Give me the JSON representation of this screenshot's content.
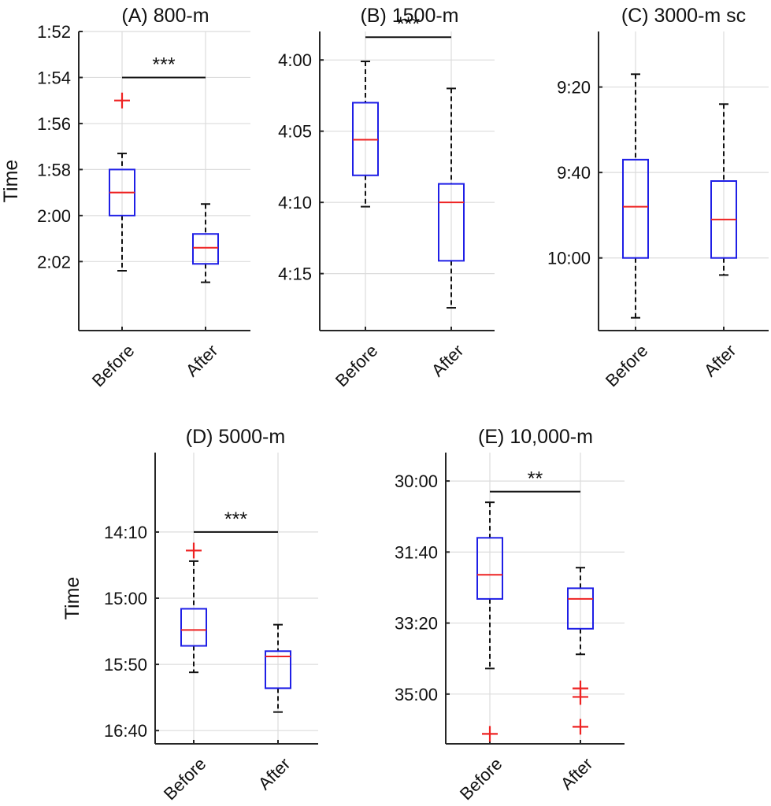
{
  "chart_data": [
    {
      "type": "boxplot",
      "title": "(A) 800-m",
      "ylabel": "Time",
      "y_unit": "seconds",
      "ylim": [
        112,
        125
      ],
      "y_reversed": true,
      "yticks": [
        112,
        114,
        116,
        118,
        120,
        122
      ],
      "ytick_labels": [
        "1:52",
        "1:54",
        "1:56",
        "1:58",
        "2:00",
        "2:02"
      ],
      "categories": [
        "Before",
        "After"
      ],
      "boxes": [
        {
          "whisker_low": 117.3,
          "q1": 118.0,
          "median": 119.0,
          "q3": 120.0,
          "whisker_high": 122.4,
          "outliers": [
            115.0
          ]
        },
        {
          "whisker_low": 119.5,
          "q1": 120.8,
          "median": 121.4,
          "q3": 122.1,
          "whisker_high": 122.9,
          "outliers": []
        }
      ],
      "significance": {
        "label": "***",
        "from": "Before",
        "to": "After",
        "y": 114
      }
    },
    {
      "type": "boxplot",
      "title": "(B) 1500-m",
      "ylabel": "",
      "y_unit": "seconds",
      "ylim": [
        238,
        259
      ],
      "y_reversed": true,
      "yticks": [
        240,
        245,
        250,
        255
      ],
      "ytick_labels": [
        "4:00",
        "4:05",
        "4:10",
        "4:15"
      ],
      "categories": [
        "Before",
        "After"
      ],
      "boxes": [
        {
          "whisker_low": 240.1,
          "q1": 243.0,
          "median": 245.6,
          "q3": 248.1,
          "whisker_high": 250.3,
          "outliers": []
        },
        {
          "whisker_low": 242.0,
          "q1": 248.7,
          "median": 250.0,
          "q3": 254.1,
          "whisker_high": 257.4,
          "outliers": []
        }
      ],
      "significance": {
        "label": "***",
        "from": "Before",
        "to": "After",
        "y": 238.4
      }
    },
    {
      "type": "boxplot",
      "title": "(C) 3000-m sc",
      "ylabel": "",
      "y_unit": "seconds",
      "ylim": [
        547,
        617
      ],
      "y_reversed": true,
      "yticks": [
        560,
        580,
        600
      ],
      "ytick_labels": [
        "9:20",
        "9:40",
        "10:00"
      ],
      "categories": [
        "Before",
        "After"
      ],
      "boxes": [
        {
          "whisker_low": 557,
          "q1": 577,
          "median": 588,
          "q3": 600,
          "whisker_high": 614,
          "outliers": []
        },
        {
          "whisker_low": 564,
          "q1": 582,
          "median": 591,
          "q3": 600,
          "whisker_high": 604,
          "outliers": []
        }
      ],
      "significance": null
    },
    {
      "type": "boxplot",
      "title": "(D) 5000-m",
      "ylabel": "Time",
      "y_unit": "seconds",
      "ylim": [
        790,
        1010
      ],
      "y_reversed": true,
      "yticks": [
        850,
        900,
        950,
        1000
      ],
      "ytick_labels": [
        "14:10",
        "15:00",
        "15:50",
        "16:40"
      ],
      "categories": [
        "Before",
        "After"
      ],
      "boxes": [
        {
          "whisker_low": 872,
          "q1": 908,
          "median": 924,
          "q3": 936,
          "whisker_high": 956,
          "outliers": [
            864
          ]
        },
        {
          "whisker_low": 920,
          "q1": 940,
          "median": 944,
          "q3": 968,
          "whisker_high": 986,
          "outliers": []
        }
      ],
      "significance": {
        "label": "***",
        "from": "Before",
        "to": "After",
        "y": 850
      }
    },
    {
      "type": "boxplot",
      "title": "(E) 10,000-m",
      "ylabel": "",
      "y_unit": "seconds",
      "ylim": [
        1760,
        2170
      ],
      "y_reversed": true,
      "yticks": [
        1800,
        1900,
        2000,
        2100
      ],
      "ytick_labels": [
        "30:00",
        "31:40",
        "33:20",
        "35:00"
      ],
      "categories": [
        "Before",
        "After"
      ],
      "boxes": [
        {
          "whisker_low": 1830,
          "q1": 1880,
          "median": 1932,
          "q3": 1966,
          "whisker_high": 2064,
          "outliers": [
            2156
          ]
        },
        {
          "whisker_low": 1922,
          "q1": 1951,
          "median": 1966,
          "q3": 2008,
          "whisker_high": 2044,
          "outliers": [
            2092,
            2104,
            2146
          ]
        }
      ],
      "significance": {
        "label": "**",
        "from": "Before",
        "to": "After",
        "y": 1815
      }
    }
  ]
}
